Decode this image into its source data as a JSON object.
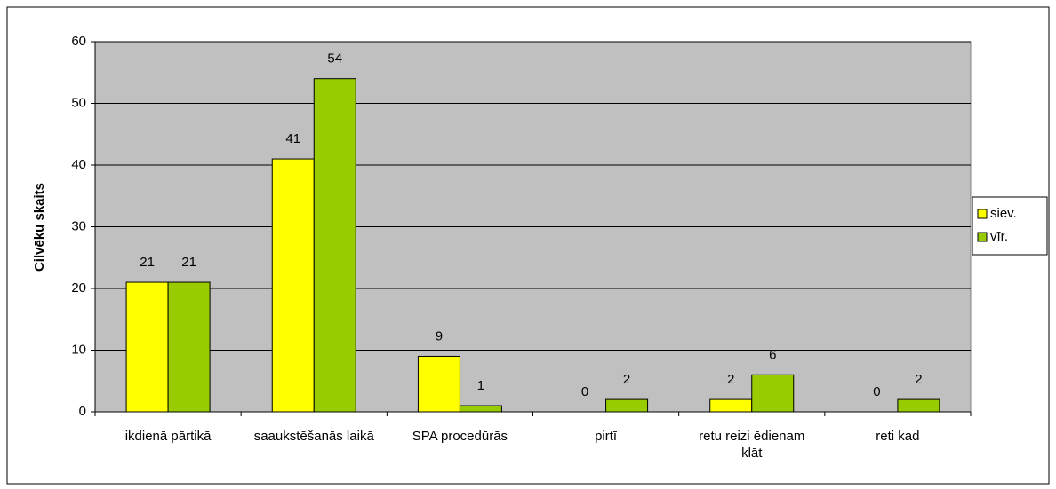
{
  "chart_data": {
    "type": "bar",
    "y_label": "Cilvēku skaits",
    "categories": [
      "ikdienā pārtikā",
      "saaukstēšanās laikā",
      "SPA procedūrās",
      "pirtī",
      "retu reizi ēdienam klāt",
      "reti kad"
    ],
    "series": [
      {
        "name": "siev.",
        "color": "#ffff00",
        "values": [
          21,
          41,
          9,
          0,
          2,
          0
        ]
      },
      {
        "name": "vīr.",
        "color": "#99cc00",
        "values": [
          21,
          54,
          1,
          2,
          6,
          2
        ]
      }
    ],
    "ylim": [
      0,
      60
    ],
    "yticks": [
      0,
      10,
      20,
      30,
      40,
      50,
      60
    ],
    "grid": true,
    "legend": "right"
  }
}
